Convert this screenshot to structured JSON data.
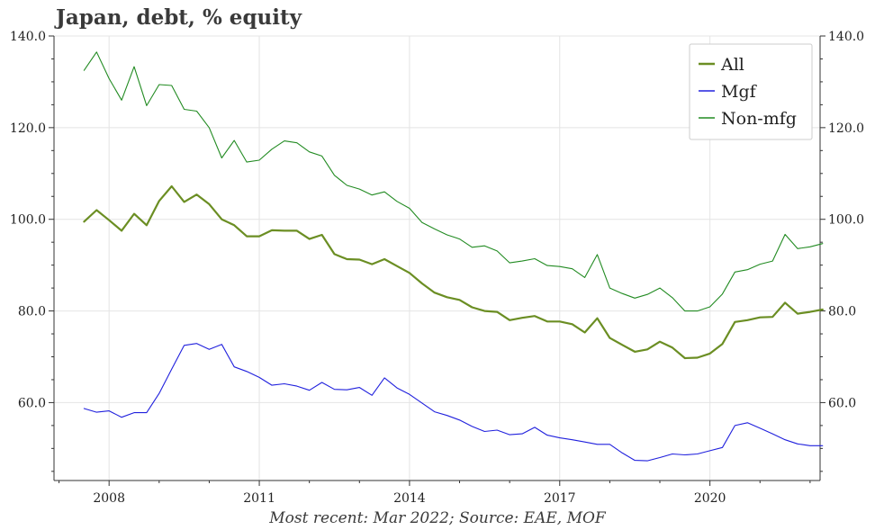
{
  "chart_data": {
    "type": "line",
    "title": "Japan, debt, % equity",
    "caption": "Most recent: Mar 2022; Source: EAE, MOF",
    "xlabel": "",
    "ylabel": "",
    "ylim": [
      43,
      140
    ],
    "xlim": [
      2006.9,
      2022.2
    ],
    "y_ticks": [
      60,
      80,
      100,
      120,
      140
    ],
    "y_tick_labels": [
      "60.0",
      "80.0",
      "100.0",
      "120.0",
      "140.0"
    ],
    "x_ticks": [
      2008,
      2011,
      2014,
      2017,
      2020
    ],
    "x_tick_labels": [
      "2008",
      "2011",
      "2014",
      "2017",
      "2020"
    ],
    "legend_position": "top-right",
    "x": [
      2007.5,
      2007.75,
      2008.0,
      2008.25,
      2008.5,
      2008.75,
      2009.0,
      2009.25,
      2009.5,
      2009.75,
      2010.0,
      2010.25,
      2010.5,
      2010.75,
      2011.0,
      2011.25,
      2011.5,
      2011.75,
      2012.0,
      2012.25,
      2012.5,
      2012.75,
      2013.0,
      2013.25,
      2013.5,
      2013.75,
      2014.0,
      2014.25,
      2014.5,
      2014.75,
      2015.0,
      2015.25,
      2015.5,
      2015.75,
      2016.0,
      2016.25,
      2016.5,
      2016.75,
      2017.0,
      2017.25,
      2017.5,
      2017.75,
      2018.0,
      2018.25,
      2018.5,
      2018.75,
      2019.0,
      2019.25,
      2019.5,
      2019.75,
      2020.0,
      2020.25,
      2020.5,
      2020.75,
      2021.0,
      2021.25,
      2021.5,
      2021.75,
      2022.0,
      2022.25
    ],
    "series": [
      {
        "name": "All",
        "color": "#6b8e23",
        "width": 2.2,
        "values": [
          99.5,
          102,
          99.8,
          97.5,
          101.2,
          98.7,
          104,
          107.2,
          103.8,
          105.4,
          103.3,
          100,
          98.7,
          96.3,
          96.3,
          97.6,
          97.5,
          97.5,
          95.7,
          96.6,
          92.4,
          91.3,
          91.2,
          90.2,
          91.3,
          89.8,
          88.3,
          86,
          84,
          83,
          82.4,
          80.8,
          80,
          79.8,
          78,
          78.5,
          78.9,
          77.7,
          77.7,
          77.1,
          75.3,
          78.4,
          74.1,
          72.6,
          71.1,
          71.6,
          73.3,
          72,
          69.7,
          69.8,
          70.7,
          72.8,
          77.6,
          78,
          78.6,
          78.7,
          81.8,
          79.4,
          79.8,
          80.3
        ]
      },
      {
        "name": "Mgf",
        "color": "#2020dd",
        "width": 1.1,
        "values": [
          58.7,
          57.9,
          58.2,
          56.8,
          57.8,
          57.8,
          62,
          67.3,
          72.5,
          72.9,
          71.6,
          72.7,
          67.8,
          66.8,
          65.5,
          63.8,
          64.1,
          63.6,
          62.7,
          64.4,
          62.9,
          62.8,
          63.3,
          61.6,
          65.4,
          63.2,
          61.8,
          59.9,
          58,
          57.2,
          56.2,
          54.8,
          53.7,
          54,
          53,
          53.2,
          54.6,
          52.9,
          52.3,
          51.9,
          51.4,
          50.9,
          50.9,
          49,
          47.4,
          47.3,
          48,
          48.8,
          48.6,
          48.8,
          49.5,
          50.2,
          55,
          55.6,
          54.4,
          53.2,
          51.9,
          51,
          50.6,
          50.6
        ]
      },
      {
        "name": "Non-mfg",
        "color": "#228b22",
        "width": 1.1,
        "values": [
          132.5,
          136.5,
          130.7,
          126,
          133.3,
          124.8,
          129.4,
          129.2,
          124,
          123.6,
          120,
          113.4,
          117.2,
          112.5,
          112.9,
          115.3,
          117.1,
          116.7,
          114.7,
          113.8,
          109.6,
          107.4,
          106.6,
          105.3,
          106,
          103.9,
          102.4,
          99.3,
          97.9,
          96.6,
          95.7,
          93.9,
          94.2,
          93.1,
          90.5,
          90.9,
          91.4,
          89.9,
          89.7,
          89.2,
          87.3,
          92.3,
          85,
          83.8,
          82.8,
          83.6,
          85,
          82.9,
          80,
          80,
          80.9,
          83.7,
          88.5,
          89,
          90.2,
          90.9,
          96.7,
          93.6,
          94,
          94.7
        ]
      }
    ]
  }
}
